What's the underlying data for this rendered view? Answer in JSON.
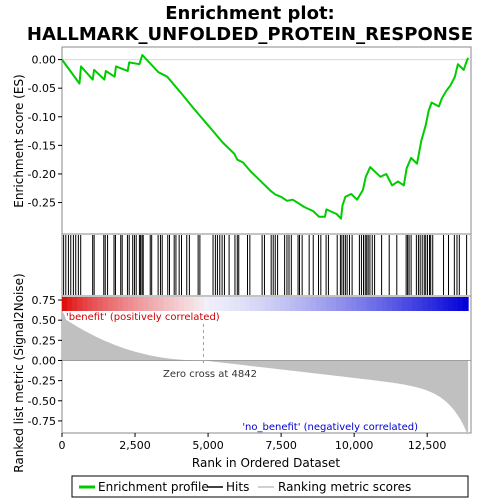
{
  "chart_data": {
    "type": "line",
    "title_line1": "Enrichment plot:",
    "title_line2": "HALLMARK_UNFOLDED_PROTEIN_RESPONSE",
    "xlabel": "Rank in Ordered Dataset",
    "ylabel_top": "Enrichment score (ES)",
    "ylabel_bottom": "Ranked list metric (Signal2Noise)",
    "xlim": [
      0,
      14000
    ],
    "es_ylim": [
      -0.305,
      0.022
    ],
    "metric_ylim": [
      -0.9,
      0.8
    ],
    "x_ticks": [
      0,
      2500,
      5000,
      7500,
      10000,
      12500
    ],
    "x_tick_labels": [
      "0",
      "2,500",
      "5,000",
      "7,500",
      "10,000",
      "12,500"
    ],
    "es_ticks": [
      0.0,
      -0.05,
      -0.1,
      -0.15,
      -0.2,
      -0.25
    ],
    "es_tick_labels": [
      "0.00",
      "-0.05",
      "-0.10",
      "-0.15",
      "-0.20",
      "-0.25"
    ],
    "metric_ticks": [
      0.75,
      0.5,
      0.25,
      0.0,
      -0.25,
      -0.5,
      -0.75
    ],
    "metric_tick_labels": [
      "0.75",
      "0.50",
      "0.25",
      "0.00",
      "-0.25",
      "-0.50",
      "-0.75"
    ],
    "n_genes": 13900,
    "zero_cross_rank": 4842,
    "zero_cross_label": "Zero cross at 4842",
    "positive_label": "'benefit' (positively correlated)",
    "negative_label": "'no_benefit' (negatively correlated)",
    "es_curve": [
      [
        0,
        0.0
      ],
      [
        600,
        -0.042
      ],
      [
        650,
        -0.012
      ],
      [
        1050,
        -0.035
      ],
      [
        1100,
        -0.018
      ],
      [
        1450,
        -0.035
      ],
      [
        1500,
        -0.02
      ],
      [
        1800,
        -0.03
      ],
      [
        1850,
        -0.012
      ],
      [
        2250,
        -0.02
      ],
      [
        2300,
        -0.005
      ],
      [
        2650,
        -0.008
      ],
      [
        2750,
        0.008
      ],
      [
        3300,
        -0.022
      ],
      [
        3600,
        -0.03
      ],
      [
        4100,
        -0.06
      ],
      [
        4500,
        -0.085
      ],
      [
        5000,
        -0.115
      ],
      [
        5500,
        -0.145
      ],
      [
        5900,
        -0.165
      ],
      [
        6000,
        -0.175
      ],
      [
        6200,
        -0.18
      ],
      [
        6450,
        -0.195
      ],
      [
        6750,
        -0.21
      ],
      [
        7150,
        -0.23
      ],
      [
        7300,
        -0.236
      ],
      [
        7500,
        -0.24
      ],
      [
        7700,
        -0.247
      ],
      [
        7900,
        -0.245
      ],
      [
        8300,
        -0.258
      ],
      [
        8600,
        -0.265
      ],
      [
        8800,
        -0.275
      ],
      [
        9000,
        -0.275
      ],
      [
        9050,
        -0.262
      ],
      [
        9400,
        -0.27
      ],
      [
        9550,
        -0.278
      ],
      [
        9600,
        -0.255
      ],
      [
        9700,
        -0.24
      ],
      [
        9900,
        -0.235
      ],
      [
        10100,
        -0.245
      ],
      [
        10300,
        -0.228
      ],
      [
        10400,
        -0.205
      ],
      [
        10550,
        -0.188
      ],
      [
        10900,
        -0.205
      ],
      [
        11100,
        -0.2
      ],
      [
        11300,
        -0.22
      ],
      [
        11500,
        -0.213
      ],
      [
        11700,
        -0.22
      ],
      [
        11800,
        -0.19
      ],
      [
        11950,
        -0.172
      ],
      [
        12150,
        -0.182
      ],
      [
        12300,
        -0.142
      ],
      [
        12450,
        -0.115
      ],
      [
        12550,
        -0.09
      ],
      [
        12650,
        -0.075
      ],
      [
        12900,
        -0.082
      ],
      [
        13000,
        -0.068
      ],
      [
        13150,
        -0.055
      ],
      [
        13300,
        -0.045
      ],
      [
        13450,
        -0.03
      ],
      [
        13550,
        -0.008
      ],
      [
        13750,
        -0.018
      ],
      [
        13850,
        -0.003
      ],
      [
        13900,
        0.003
      ]
    ],
    "hit_ranks": [
      55,
      130,
      220,
      300,
      390,
      470,
      560,
      640,
      1050,
      1100,
      1430,
      1480,
      1560,
      1780,
      1830,
      2010,
      2060,
      2240,
      2300,
      2420,
      2480,
      2540,
      2650,
      2690,
      2740,
      2780,
      3020,
      3070,
      3290,
      3370,
      3430,
      3620,
      3680,
      3840,
      3900,
      4010,
      4090,
      4270,
      4360,
      4660,
      4720,
      5170,
      5250,
      5320,
      5400,
      5480,
      5560,
      5720,
      5920,
      6000,
      6050,
      6350,
      6430,
      6850,
      6930,
      7160,
      7230,
      7300,
      7380,
      7620,
      7700,
      7770,
      7850,
      8080,
      8130,
      8220,
      8460,
      8600,
      8780,
      8860,
      9040,
      9120,
      9420,
      9530,
      9580,
      9640,
      9700,
      9760,
      9840,
      9930,
      10180,
      10250,
      10320,
      10380,
      10430,
      10480,
      10540,
      10620,
      10700,
      10940,
      11200,
      11460,
      11780,
      11830,
      11880,
      11950,
      12130,
      12200,
      12260,
      12330,
      12400,
      12450,
      12510,
      12580,
      12620,
      12690,
      13060,
      13230,
      13430,
      13520,
      13600,
      13850
    ],
    "colors": {
      "es_line": "#00cc00",
      "hit_tick": "#000000",
      "metric_fill": "#c0c0c0",
      "positive_label": "#cc0000",
      "negative_label": "#0000cc",
      "bar_red": "#e00000",
      "bar_blue": "#0000d8",
      "zero_cross_line": "#a0a0a0"
    },
    "legend_position": "bottom"
  },
  "legend": {
    "enrichment_profile": "Enrichment profile",
    "hits": "Hits",
    "ranking_metric": "Ranking metric scores"
  }
}
